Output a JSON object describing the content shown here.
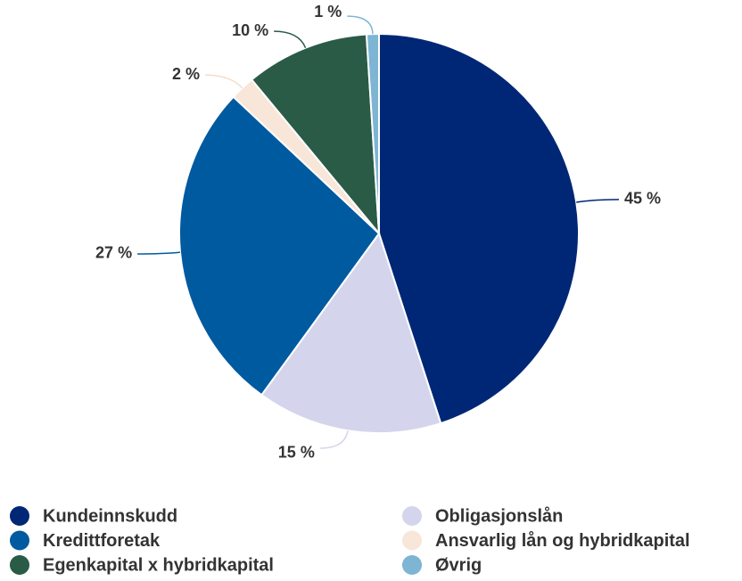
{
  "chart_data": {
    "type": "pie",
    "categories": [
      "Kundeinnskudd",
      "Obligasjonslån",
      "Kredittforetak",
      "Ansvarlig lån og hybridkapital",
      "Egenkapital x hybridkapital",
      "Øvrig"
    ],
    "values": [
      45,
      15,
      27,
      2,
      10,
      1
    ],
    "value_labels": [
      "45 %",
      "15 %",
      "27 %",
      "2 %",
      "10 %",
      "1 %"
    ],
    "colors": [
      "#002776",
      "#d4d5ec",
      "#005aa0",
      "#f8e6d9",
      "#2a5b47",
      "#7db5d3"
    ]
  }
}
